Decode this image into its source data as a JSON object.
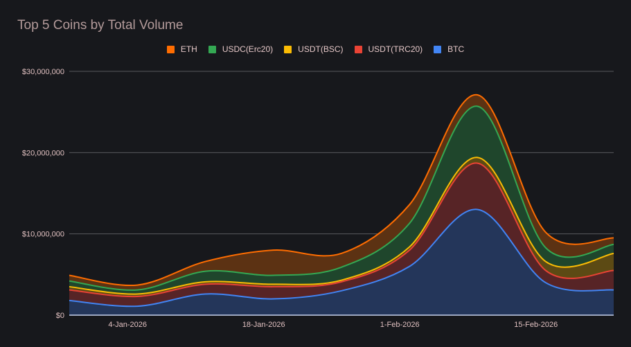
{
  "chart_data": {
    "type": "area",
    "stacked": true,
    "title": "Top 5 Coins by Total Volume",
    "xlabel": "",
    "ylabel": "",
    "x": [
      "29-Dec-2025",
      "5-Jan-2026",
      "12-Jan-2026",
      "19-Jan-2026",
      "26-Jan-2026",
      "2-Feb-2026",
      "9-Feb-2026",
      "16-Feb-2026",
      "23-Feb-2026"
    ],
    "x_tick_labels": [
      "4-Jan-2026",
      "18-Jan-2026",
      "1-Feb-2026",
      "15-Feb-2026"
    ],
    "ylim": [
      0,
      30000000
    ],
    "y_tick_labels": [
      "$0",
      "$10,000,000",
      "$20,000,000",
      "$30,000,000"
    ],
    "y_ticks": [
      0,
      10000000,
      20000000,
      30000000
    ],
    "grid": true,
    "legend_position": "top",
    "series": [
      {
        "name": "BTC",
        "color": "#4285f4",
        "fill": "#24365a",
        "values": [
          1800000,
          1100000,
          2600000,
          2000000,
          3000000,
          6000000,
          13000000,
          4000000,
          3100000
        ]
      },
      {
        "name": "USDT(TRC20)",
        "color": "#ea4335",
        "fill": "#572426",
        "values": [
          1300000,
          1200000,
          1200000,
          1500000,
          1100000,
          2000000,
          5700000,
          1500000,
          2400000
        ]
      },
      {
        "name": "USDT(BSC)",
        "color": "#fbbc04",
        "fill": "#5c4a14",
        "values": [
          400000,
          300000,
          300000,
          300000,
          200000,
          400000,
          700000,
          1100000,
          2100000
        ]
      },
      {
        "name": "USDC(Erc20)",
        "color": "#34a853",
        "fill": "#1f462c",
        "values": [
          700000,
          500000,
          1300000,
          1100000,
          1600000,
          2900000,
          6300000,
          1700000,
          1100000
        ]
      },
      {
        "name": "ETH",
        "color": "#ff6d01",
        "fill": "#5c3213",
        "values": [
          700000,
          600000,
          1200000,
          3100000,
          1700000,
          2300000,
          1400000,
          1900000,
          800000
        ]
      }
    ],
    "legend_order": [
      "ETH",
      "USDC(Erc20)",
      "USDT(BSC)",
      "USDT(TRC20)",
      "BTC"
    ]
  }
}
